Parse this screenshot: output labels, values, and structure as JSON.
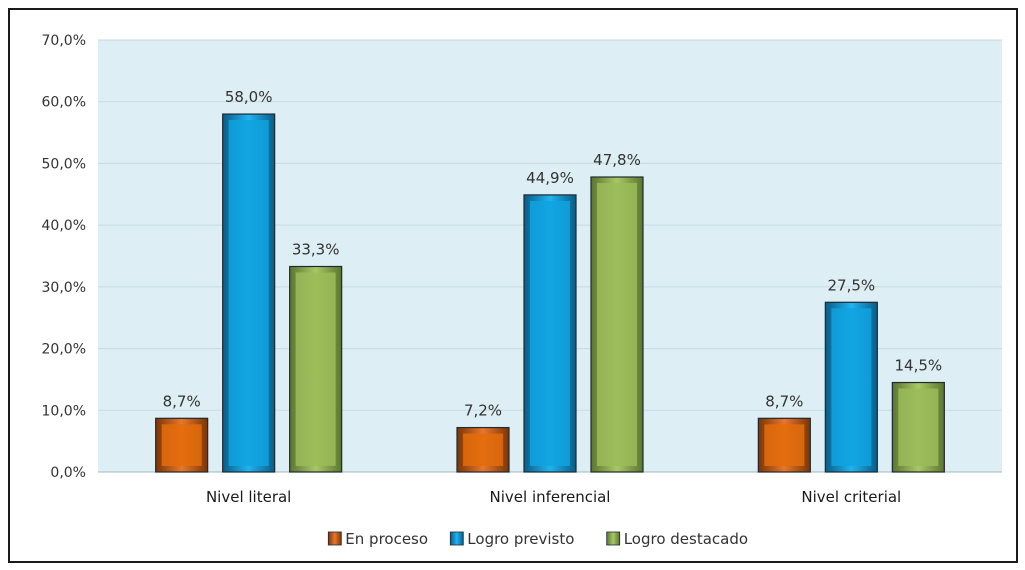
{
  "chart_data": {
    "type": "bar",
    "categories": [
      "Nivel literal",
      "Nivel inferencial",
      "Nivel criterial"
    ],
    "series": [
      {
        "name": "En proceso",
        "values": [
          8.7,
          7.2,
          8.7
        ],
        "labels": [
          "8,7%",
          "7,2%",
          "8,7%"
        ],
        "color": "#e36c0a"
      },
      {
        "name": "Logro previsto",
        "values": [
          58.0,
          44.9,
          27.5
        ],
        "labels": [
          "58,0%",
          "44,9%",
          "27,5%"
        ],
        "color": "#0fa3e0"
      },
      {
        "name": "Logro destacado",
        "values": [
          33.3,
          47.8,
          14.5
        ],
        "labels": [
          "33,3%",
          "47,8%",
          "14,5%"
        ],
        "color": "#9bbb59"
      }
    ],
    "yticks": [
      "0,0%",
      "10,0%",
      "20,0%",
      "30,0%",
      "40,0%",
      "50,0%",
      "60,0%",
      "70,0%"
    ],
    "ylim": [
      0,
      70
    ],
    "grid": true,
    "legend": "bottom",
    "plot_background": "#ddeef4"
  }
}
